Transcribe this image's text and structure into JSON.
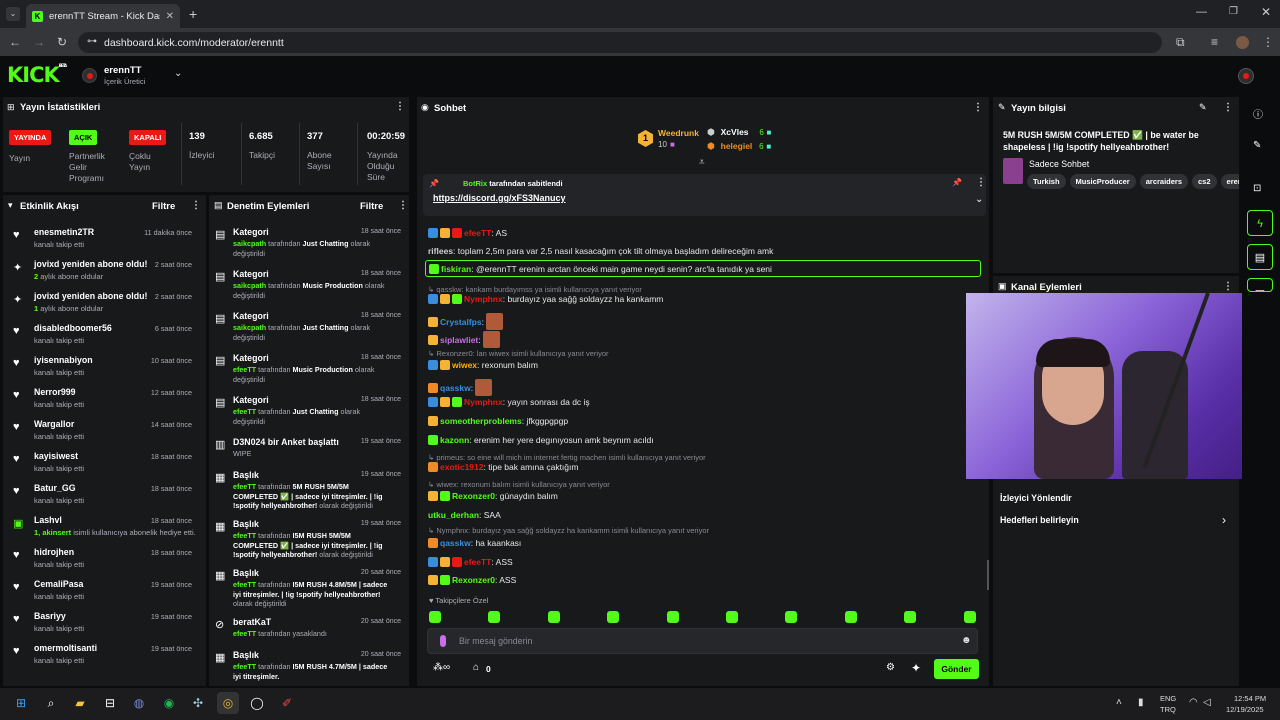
{
  "browser": {
    "tab_title": "erennTT Stream - Kick Dashbo",
    "url": "dashboard.kick.com/moderator/erenntt"
  },
  "header": {
    "logo": "KICK",
    "beta": "BETA",
    "channel": "erennTT",
    "role": "İçerik Üretici"
  },
  "stats_panel": {
    "title": "Yayın İstatistikleri",
    "badges": [
      {
        "badge": "YAYINDA",
        "label": "Yayın",
        "color": "#e91916"
      },
      {
        "badge": "AÇIK",
        "label": "Partnerlik Gelir Programı",
        "color": "#53fc18"
      },
      {
        "badge": "KAPALI",
        "label": "Çoklu Yayın",
        "color": "#e91916"
      }
    ],
    "stats": [
      {
        "value": "139",
        "label": "İzleyici"
      },
      {
        "value": "6.685",
        "label": "Takipçi"
      },
      {
        "value": "377",
        "label": "Abone Sayısı"
      },
      {
        "value": "00:20:59",
        "label": "Yayında Olduğu Süre"
      }
    ]
  },
  "activity": {
    "title": "Etkinlik Akışı",
    "filter": "Filtre",
    "items": [
      {
        "icon": "♥",
        "title": "enesmetin2TR",
        "sub": "kanalı takip etti",
        "time": "11 dakika önce"
      },
      {
        "icon": "✦",
        "title": "jovixd yeniden abone oldu!",
        "sub_g": "2",
        "sub": " aylık abone oldular",
        "time": "2 saat önce"
      },
      {
        "icon": "✦",
        "title": "jovixd yeniden abone oldu!",
        "sub_g": "1",
        "sub": " aylık abone oldular",
        "time": "2 saat önce"
      },
      {
        "icon": "♥",
        "title": "disabledboomer56",
        "sub": "kanalı takip etti",
        "time": "6 saat önce"
      },
      {
        "icon": "♥",
        "title": "iyisennabiyon",
        "sub": "kanalı takip etti",
        "time": "10 saat önce"
      },
      {
        "icon": "♥",
        "title": "Nerror999",
        "sub": "kanalı takip etti",
        "time": "12 saat önce"
      },
      {
        "icon": "♥",
        "title": "Wargallor",
        "sub": "kanalı takip etti",
        "time": "14 saat önce"
      },
      {
        "icon": "♥",
        "title": "kayisiwest",
        "sub": "kanalı takip etti",
        "time": "18 saat önce"
      },
      {
        "icon": "♥",
        "title": "Batur_GG",
        "sub": "kanalı takip etti",
        "time": "18 saat önce"
      },
      {
        "icon": "▣",
        "title": "Lashvl",
        "sub_g": "1, akinsert",
        "sub": " isimli kullanıcıya abonelik hediye etti.",
        "time": "18 saat önce"
      },
      {
        "icon": "♥",
        "title": "hidrojhen",
        "sub": "kanalı takip etti",
        "time": "18 saat önce"
      },
      {
        "icon": "♥",
        "title": "CemaliPasa",
        "sub": "kanalı takip etti",
        "time": "19 saat önce"
      },
      {
        "icon": "♥",
        "title": "Basriyy",
        "sub": "kanalı takip etti",
        "time": "19 saat önce"
      },
      {
        "icon": "♥",
        "title": "omermoltisanti",
        "sub": "kanalı takip etti",
        "time": "19 saat önce"
      }
    ]
  },
  "moderation": {
    "title": "Denetim Eylemleri",
    "filter": "Filtre",
    "items": [
      {
        "icon": "▤",
        "title": "Kategori",
        "user": "saikcpath",
        "mid": " tarafından ",
        "val": "Just Chatting",
        "end": " olarak değiştirildi",
        "time": "18 saat önce"
      },
      {
        "icon": "▤",
        "title": "Kategori",
        "user": "saikcpath",
        "mid": " tarafından ",
        "val": "Music Production",
        "end": " olarak değiştirildi",
        "time": "18 saat önce"
      },
      {
        "icon": "▤",
        "title": "Kategori",
        "user": "saikcpath",
        "mid": " tarafından ",
        "val": "Just Chatting",
        "end": " olarak değiştirildi",
        "time": "18 saat önce"
      },
      {
        "icon": "▤",
        "title": "Kategori",
        "user": "efeeTT",
        "mid": " tarafından ",
        "val": "Music Production",
        "end": " olarak değiştirildi",
        "time": "18 saat önce"
      },
      {
        "icon": "▤",
        "title": "Kategori",
        "user": "efeeTT",
        "mid": " tarafından ",
        "val": "Just Chatting",
        "end": " olarak değiştirildi",
        "time": "18 saat önce"
      },
      {
        "icon": "▥",
        "title": "D3N024 bir Anket başlattı",
        "user": "",
        "mid": "WIPE",
        "val": "",
        "end": "",
        "time": "19 saat önce"
      },
      {
        "icon": "▦",
        "title": "Başlık",
        "user": "efeeTT",
        "mid": " tarafından ",
        "val": "5M RUSH 5M/5M COMPLETED ✅ | sadece iyi titreşimler. | !ig !spotify hellyeahbrother!",
        "end": " olarak değiştirildi",
        "time": "19 saat önce"
      },
      {
        "icon": "▦",
        "title": "Başlık",
        "user": "efeeTT",
        "mid": " tarafından ",
        "val": "I5M RUSH 5M/5M COMPLETED ✅ | sadece iyi titreşimler. | !ig !spotify hellyeahbrother!",
        "end": " olarak değiştirildi",
        "time": "19 saat önce"
      },
      {
        "icon": "▦",
        "title": "Başlık",
        "user": "efeeTT",
        "mid": " tarafından ",
        "val": "I5M RUSH 4.8M/5M | sadece iyi titreşimler. | !ig !spotify hellyeahbrother!",
        "end": " olarak değiştirildi",
        "time": "20 saat önce"
      },
      {
        "icon": "⊘",
        "title": "beratKaT",
        "user": "efeeTT",
        "mid": " tarafından yasaklandı",
        "val": "",
        "end": "",
        "time": "20 saat önce"
      },
      {
        "icon": "▦",
        "title": "Başlık",
        "user": "efeeTT",
        "mid": " tarafından ",
        "val": "I5M RUSH 4.7M/5M | sadece iyi titreşimler.",
        "end": "",
        "time": "20 saat önce"
      }
    ]
  },
  "chat": {
    "title": "Sohbet",
    "gifters": [
      {
        "name": "Weedrunk",
        "count": "10"
      },
      {
        "name": "XcVles",
        "count": "6"
      },
      {
        "name": "helegiel",
        "count": "6"
      }
    ],
    "pinned": {
      "by": "BotRix",
      "by_suffix": " tarafından sabitlendi",
      "link": "https://discord.gg/xFS3Nanucy"
    },
    "lines": [
      {
        "type": "msg",
        "user": "efeeTT",
        "color": "#e91916",
        "text": "AS",
        "badges": [
          "#3a8dde",
          "#f5b335",
          "#e91916"
        ]
      },
      {
        "type": "msg",
        "user": "riflees",
        "color": "#d0d0d0",
        "text": "toplam 2,5m para var 2,5 nasıl kasacağım çok tilt olmaya başladım delireceğim amk",
        "badges": []
      },
      {
        "type": "hl",
        "user": "fiskiran",
        "color": "#53fc18",
        "text": "@erennTT erenim arctan önceki main game neydi senin? arc'la tanıdık ya seni",
        "badges": [
          "#53fc18"
        ]
      },
      {
        "type": "reply",
        "text": "qasskw: kankam burdayımss ya isimli kullanıcıya yanıt veriyor"
      },
      {
        "type": "msg",
        "user": "Nymphnx",
        "color": "#e91916",
        "text": "burdayız yaa sağğ soldayzz ha kankamm",
        "badges": [
          "#3a8dde",
          "#f5b335",
          "#53fc18"
        ]
      },
      {
        "type": "emote",
        "user": "Crystalfps",
        "color": "#3a8dde",
        "text": "",
        "badges": [
          "#f5b335"
        ]
      },
      {
        "type": "emote",
        "user": "siplawliet",
        "color": "#c86ee6",
        "text": "",
        "badges": [
          "#f5b335"
        ]
      },
      {
        "type": "reply",
        "text": "Rexonzer0: lan wiwex isimli kullanıcıya yanıt veriyor"
      },
      {
        "type": "msg",
        "user": "wiwex",
        "color": "#ffb000",
        "text": "rexonum balım",
        "badges": [
          "#3a8dde",
          "#f5b335"
        ]
      },
      {
        "type": "emote",
        "user": "qasskw",
        "color": "#3a8dde",
        "text": "",
        "badges": [
          "#f08a24"
        ]
      },
      {
        "type": "msg",
        "user": "Nymphnx",
        "color": "#e91916",
        "text": "yayın sonrası da dc iş",
        "badges": [
          "#3a8dde",
          "#f5b335",
          "#53fc18"
        ]
      },
      {
        "type": "msg",
        "user": "someotherproblems",
        "color": "#53fc18",
        "text": "jfkggpgpgp",
        "badges": [
          "#f5b335"
        ]
      },
      {
        "type": "msg",
        "user": "kazonn",
        "color": "#53fc18",
        "text": "erenim her yere degınıyosun amk beynım acıldı",
        "badges": [
          "#53fc18"
        ]
      },
      {
        "type": "reply",
        "text": "primeus: so eine will mich im internet fertig machen isimli kullanıcıya yanıt veriyor"
      },
      {
        "type": "msg",
        "user": "exotic1912",
        "color": "#e91916",
        "text": "tipe bak amına çaktığım",
        "badges": [
          "#f08a24"
        ]
      },
      {
        "type": "reply",
        "text": "wiwex: rexonum balım isimli kullanıcıya yanıt veriyor"
      },
      {
        "type": "msg",
        "user": "Rexonzer0",
        "color": "#53fc18",
        "text": "günaydın balım",
        "badges": [
          "#f5b335",
          "#53fc18"
        ]
      },
      {
        "type": "msg",
        "user": "utku_derhan",
        "color": "#53fc18",
        "text": "SAA",
        "badges": []
      },
      {
        "type": "reply",
        "text": "Nymphnx: burdayız yaa sağğ soldayzz ha kankamm isimli kullanıcıya yanıt veriyor"
      },
      {
        "type": "msg",
        "user": "qasskw",
        "color": "#3a8dde",
        "text": "ha kaankası",
        "badges": [
          "#f08a24"
        ]
      },
      {
        "type": "msg",
        "user": "efeeTT",
        "color": "#e91916",
        "text": "ASS",
        "badges": [
          "#3a8dde",
          "#f5b335",
          "#e91916"
        ]
      },
      {
        "type": "msg",
        "user": "Rexonzer0",
        "color": "#53fc18",
        "text": "ASS",
        "badges": [
          "#f5b335",
          "#53fc18"
        ]
      }
    ],
    "emote_label": "♥ Takipçilere Özel",
    "input_placeholder": "Bir mesaj gönderin",
    "count": "0",
    "send": "Gönder"
  },
  "info": {
    "title": "Yayın bilgisi",
    "stream_title": "5M RUSH 5M/5M COMPLETED ✅ | be water be shapeless | !ig !spotify hellyeahbrother!",
    "category": "Sadece Sohbet",
    "tags": [
      "Turkish",
      "MusicProducer",
      "arcraiders",
      "cs2",
      "eren"
    ]
  },
  "actions": {
    "title": "Kanal Eylemleri",
    "items": [
      "İzleyici Yönlendir",
      "Hedefleri belirleyin"
    ]
  },
  "taskbar": {
    "lang1": "ENG",
    "lang2": "TRQ",
    "time": "12:54 PM",
    "date": "12/19/2025"
  },
  "colors": {
    "accent": "#53fc18",
    "panel": "#18191b",
    "bg": "#0b0c0d",
    "live": "#e91916"
  }
}
